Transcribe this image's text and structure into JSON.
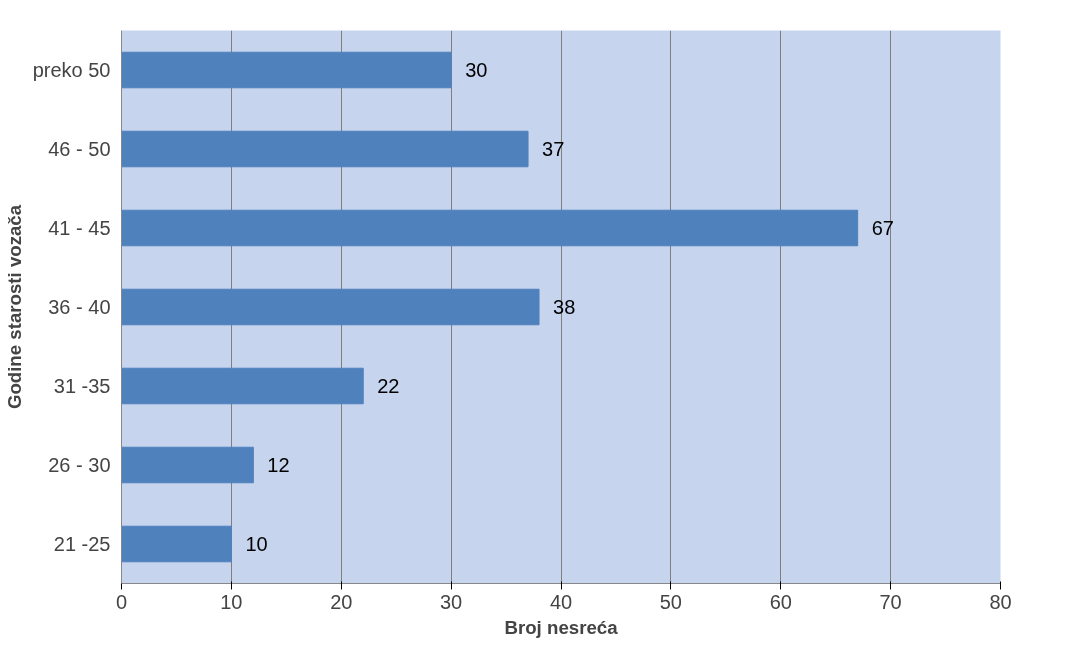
{
  "chart_data": {
    "type": "bar",
    "orientation": "horizontal",
    "xlabel": "Broj nesreća",
    "ylabel": "Godine starosti vozača",
    "categories": [
      "preko 50",
      "46 - 50",
      "41 - 45",
      "36 - 40",
      "31 -35",
      "26 - 30",
      "21 -25"
    ],
    "values": [
      30,
      37,
      67,
      38,
      22,
      12,
      10
    ],
    "color": "#4f81bd",
    "xlim": [
      0,
      80
    ],
    "xticks": [
      0,
      10,
      20,
      30,
      40,
      50,
      60,
      70,
      80
    ],
    "grid": "x",
    "data_labels": true
  }
}
